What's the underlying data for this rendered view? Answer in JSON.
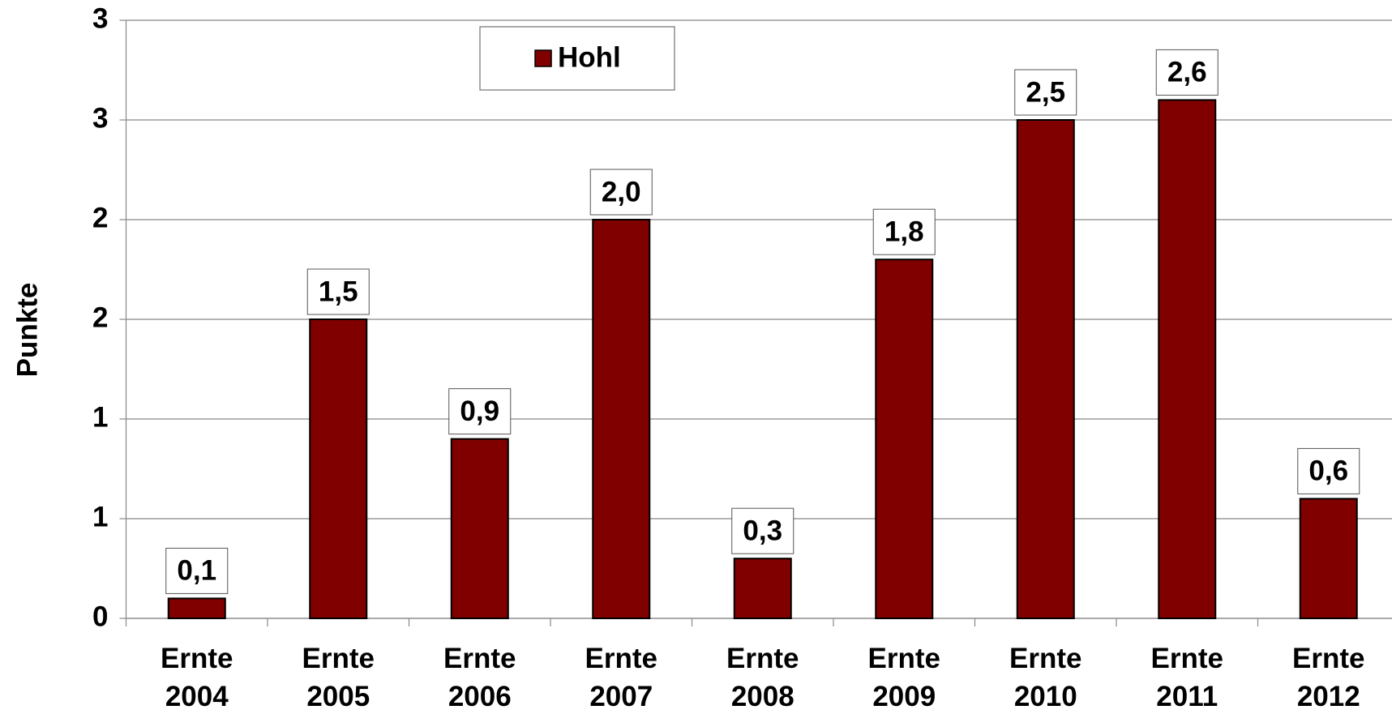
{
  "chart_data": {
    "type": "bar",
    "y_label": "Punkte",
    "categories": [
      "Ernte 2004",
      "Ernte 2005",
      "Ernte 2006",
      "Ernte 2007",
      "Ernte 2008",
      "Ernte 2009",
      "Ernte 2010",
      "Ernte 2011",
      "Ernte 2012"
    ],
    "series": [
      {
        "name": "Hohl",
        "color": "#800000",
        "values": [
          0.1,
          1.5,
          0.9,
          2.0,
          0.3,
          1.8,
          2.5,
          2.6,
          0.6
        ],
        "value_labels": [
          "0,1",
          "1,5",
          "0,9",
          "2,0",
          "0,3",
          "1,8",
          "2,5",
          "2,6",
          "0,6"
        ]
      }
    ],
    "ylim": [
      0,
      3
    ],
    "yticks": [
      0,
      {
        "value": 0.5,
        "label": "1"
      },
      1,
      {
        "value": 1.5,
        "label": "2"
      },
      2,
      {
        "value": 2.5,
        "label": "3"
      },
      3
    ],
    "grid": true,
    "legend": "top"
  }
}
